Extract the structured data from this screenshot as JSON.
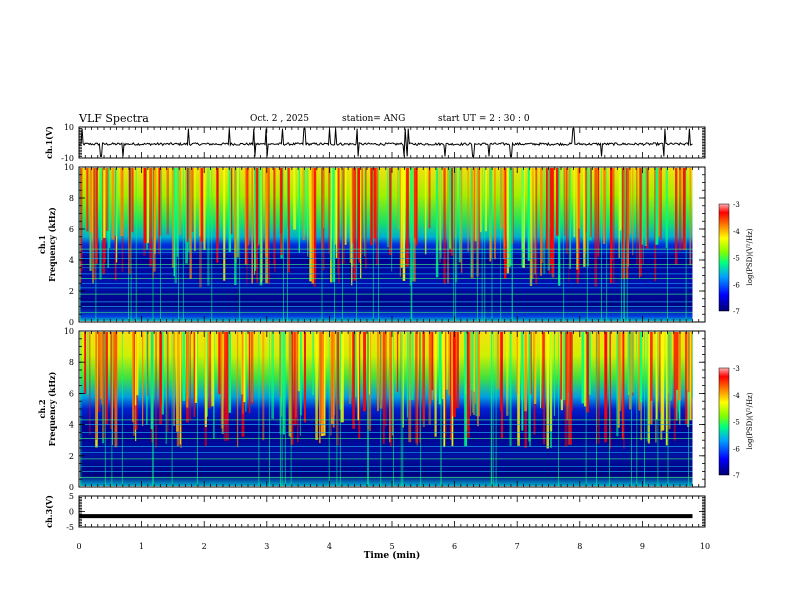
{
  "header": {
    "title": "VLF Spectra",
    "date": "Oct. 2 , 2025",
    "station": "station= ANG",
    "start": "start UT = 2 : 30 : 0"
  },
  "colors": {
    "scale": [
      "#000070",
      "#0000ff",
      "#00a0ff",
      "#00ff80",
      "#80ff00",
      "#ffff00",
      "#ff8000",
      "#ff0000",
      "#ffb0b0"
    ],
    "trace": "#000000"
  },
  "chart_data": [
    {
      "type": "line",
      "name": "ch1-waveform",
      "ylabel": "ch.1(V)",
      "ylim": [
        -10,
        10
      ],
      "y_ticks": [
        "10",
        "-10"
      ],
      "baseline": -1,
      "spikes_x": [
        0.05,
        0.35,
        0.7,
        1.75,
        2.4,
        2.8,
        3.0,
        3.25,
        3.6,
        4.0,
        4.1,
        4.45,
        5.2,
        5.25,
        5.85,
        6.3,
        6.55,
        6.9,
        7.9,
        8.35,
        9.35,
        9.75
      ]
    },
    {
      "type": "heatmap",
      "name": "ch1-spectrogram",
      "ylabel": "ch.1 Frequency (kHz)",
      "ylim": [
        0,
        10
      ],
      "y_ticks": [
        "0",
        "2",
        "4",
        "6",
        "8",
        "10"
      ],
      "colorbar": {
        "label": "log(PSD)(V²/Hz)",
        "range": [
          -7,
          -3
        ],
        "ticks": [
          "-3",
          "-4",
          "-5",
          "-6",
          "-7"
        ]
      },
      "noise_lines_khz": [
        0.6,
        1.0,
        1.3,
        1.8,
        2.2,
        2.5,
        2.8,
        3.1,
        3.5,
        3.7,
        4.1,
        4.5,
        4.7
      ],
      "emission_floor_khz": 5.0
    },
    {
      "type": "heatmap",
      "name": "ch2-spectrogram",
      "ylabel": "ch.2 Frequency (kHz)",
      "ylim": [
        0,
        10
      ],
      "y_ticks": [
        "0",
        "2",
        "4",
        "6",
        "8",
        "10"
      ],
      "colorbar": {
        "label": "log(PSD)(V²/Hz)",
        "range": [
          -7,
          -3
        ],
        "ticks": [
          "-3",
          "-4",
          "-5",
          "-6",
          "-7"
        ]
      },
      "noise_lines_khz": [
        0.6,
        1.0,
        1.3,
        1.8,
        2.2,
        2.6,
        3.1,
        3.5,
        4.0,
        4.3
      ],
      "emission_floor_khz": 5.2
    },
    {
      "type": "line",
      "name": "ch3-waveform",
      "ylabel": "ch.3(V)",
      "ylim": [
        -5,
        5
      ],
      "y_ticks": [
        "5",
        "0",
        "-5"
      ],
      "constant_value": -1.5
    }
  ],
  "xaxis": {
    "label": "Time (min)",
    "range": [
      0,
      10
    ],
    "ticks": [
      "0",
      "1",
      "2",
      "3",
      "4",
      "5",
      "6",
      "7",
      "8",
      "9",
      "10"
    ],
    "data_end_min": 9.8
  }
}
